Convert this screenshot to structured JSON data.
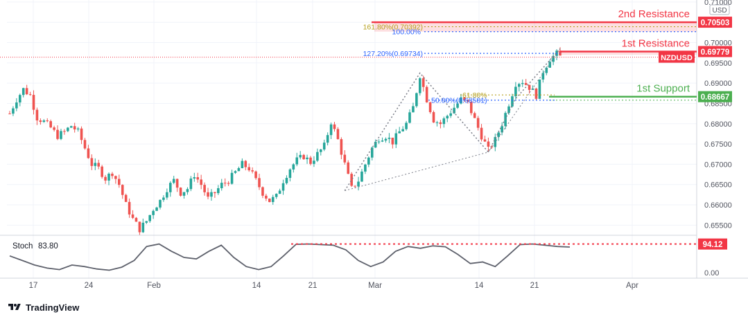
{
  "chart_data": {
    "type": "candlestick",
    "symbol": "NZDUSD",
    "currency": "USD",
    "ylim": [
      0.6525,
      0.7105
    ],
    "y_ticks": [
      "0.71000",
      "0.70500",
      "0.70000",
      "0.69500",
      "0.69000",
      "0.68500",
      "0.68000",
      "0.67500",
      "0.67000",
      "0.66500",
      "0.66000",
      "0.65500"
    ],
    "x_ticks": [
      "17",
      "24",
      "Feb",
      "14",
      "21",
      "Mar",
      "14",
      "21",
      "Apr"
    ],
    "price_path": [
      [
        0,
        0.6825
      ],
      [
        2,
        0.686
      ],
      [
        4,
        0.6885
      ],
      [
        6,
        0.687
      ],
      [
        8,
        0.6815
      ],
      [
        10,
        0.6805
      ],
      [
        12,
        0.679
      ],
      [
        14,
        0.677
      ],
      [
        16,
        0.678
      ],
      [
        18,
        0.6795
      ],
      [
        20,
        0.678
      ],
      [
        22,
        0.674
      ],
      [
        24,
        0.67
      ],
      [
        26,
        0.669
      ],
      [
        28,
        0.6665
      ],
      [
        30,
        0.668
      ],
      [
        32,
        0.665
      ],
      [
        34,
        0.66
      ],
      [
        36,
        0.6565
      ],
      [
        38,
        0.654
      ],
      [
        40,
        0.656
      ],
      [
        42,
        0.659
      ],
      [
        44,
        0.661
      ],
      [
        46,
        0.664
      ],
      [
        48,
        0.666
      ],
      [
        50,
        0.663
      ],
      [
        52,
        0.664
      ],
      [
        54,
        0.6675
      ],
      [
        56,
        0.665
      ],
      [
        58,
        0.6615
      ],
      [
        60,
        0.663
      ],
      [
        62,
        0.665
      ],
      [
        64,
        0.666
      ],
      [
        66,
        0.668
      ],
      [
        68,
        0.67
      ],
      [
        70,
        0.669
      ],
      [
        72,
        0.666
      ],
      [
        74,
        0.663
      ],
      [
        76,
        0.661
      ],
      [
        78,
        0.662
      ],
      [
        80,
        0.666
      ],
      [
        82,
        0.669
      ],
      [
        84,
        0.671
      ],
      [
        86,
        0.672
      ],
      [
        88,
        0.6705
      ],
      [
        90,
        0.6725
      ],
      [
        92,
        0.6745
      ],
      [
        94,
        0.6805
      ],
      [
        96,
        0.676
      ],
      [
        98,
        0.67
      ],
      [
        100,
        0.664
      ],
      [
        102,
        0.666
      ],
      [
        104,
        0.67
      ],
      [
        106,
        0.674
      ],
      [
        108,
        0.6765
      ],
      [
        110,
        0.677
      ],
      [
        112,
        0.6755
      ],
      [
        114,
        0.678
      ],
      [
        116,
        0.68
      ],
      [
        118,
        0.684
      ],
      [
        120,
        0.692
      ],
      [
        122,
        0.686
      ],
      [
        124,
        0.681
      ],
      [
        126,
        0.68
      ],
      [
        128,
        0.682
      ],
      [
        130,
        0.684
      ],
      [
        132,
        0.686
      ],
      [
        134,
        0.685
      ],
      [
        136,
        0.681
      ],
      [
        138,
        0.677
      ],
      [
        140,
        0.6735
      ],
      [
        142,
        0.676
      ],
      [
        144,
        0.68
      ],
      [
        146,
        0.685
      ],
      [
        148,
        0.69
      ],
      [
        150,
        0.6905
      ],
      [
        152,
        0.689
      ],
      [
        154,
        0.687
      ],
      [
        156,
        0.693
      ],
      [
        158,
        0.696
      ],
      [
        160,
        0.6972
      ],
      [
        161,
        0.6965
      ]
    ],
    "series": [
      {
        "name": "Stoch",
        "values": [
          0.55,
          0.4,
          0.25,
          0.15,
          0.1,
          0.25,
          0.2,
          0.12,
          0.08,
          0.18,
          0.4,
          0.86,
          0.94,
          0.7,
          0.5,
          0.45,
          0.7,
          0.9,
          0.5,
          0.2,
          0.1,
          0.2,
          0.55,
          0.93,
          0.94,
          0.92,
          0.9,
          0.75,
          0.4,
          0.2,
          0.35,
          0.7,
          0.86,
          0.8,
          0.88,
          0.85,
          0.6,
          0.3,
          0.35,
          0.2,
          0.55,
          0.92,
          0.94,
          0.9,
          0.86,
          0.84
        ]
      }
    ],
    "stoch_ylim": [
      0,
      100
    ],
    "stoch_y_ticks": [
      "0.00"
    ],
    "stoch_label": "Stoch",
    "stoch_value": "83.80",
    "stoch_marker": "94.12",
    "levels": {
      "second_resistance": {
        "label": "2nd Resistance",
        "value": "0.70503",
        "price": 0.70503
      },
      "first_resistance": {
        "label": "1st Resistance",
        "value": "0.69779",
        "price": 0.69779
      },
      "first_support": {
        "label": "1st Support",
        "value": "0.68667",
        "price": 0.68667
      },
      "current": {
        "label": "NZDUSD",
        "price": 0.6964
      }
    },
    "fibonacci": [
      {
        "label": "161.80%(0.70392)",
        "price": 0.70392
      },
      {
        "label": "100.00%",
        "price": 0.7027
      },
      {
        "label": "127.20%(0.69734)",
        "price": 0.69734
      },
      {
        "label": "61.80%",
        "price": 0.6871
      },
      {
        "label": "50.00%(0.68581)",
        "price": 0.68581
      }
    ],
    "colors": {
      "up": "#26a69a",
      "down": "#ef5350",
      "resistance": "#f23645",
      "support": "#4caf50",
      "fib_blue": "#2962ff",
      "fib_gold": "#b5a01e",
      "stoch": "#5d606b",
      "text": "#131722",
      "axis_text": "#50535e"
    }
  },
  "footer": {
    "brand": "TradingView"
  }
}
